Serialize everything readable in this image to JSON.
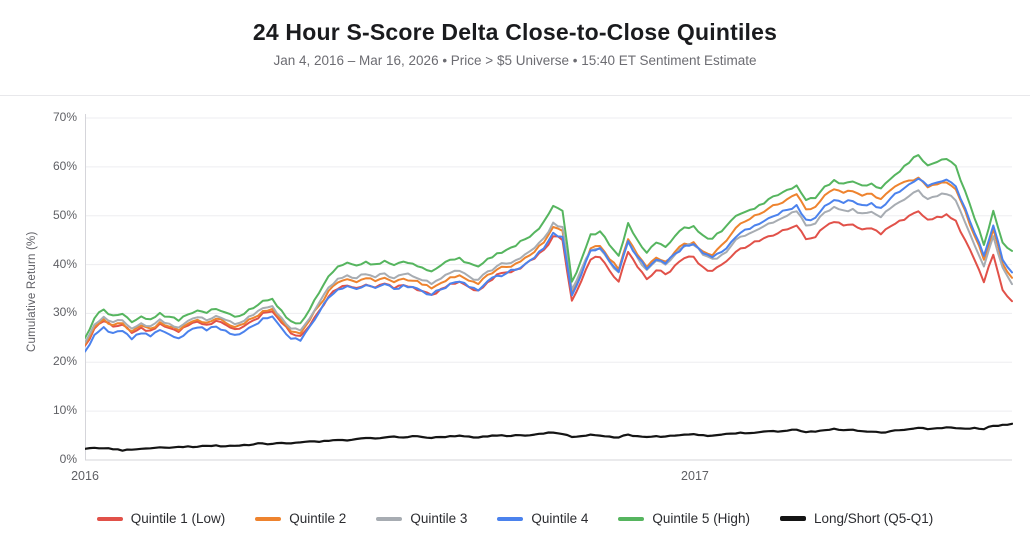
{
  "header": {
    "title": "24 Hour S-Score Delta Close-to-Close Quintiles",
    "subtitle": "Jan 4, 2016 – Mar 16, 2026  •  Price > $5 Universe  •  15:40 ET Sentiment Estimate"
  },
  "chart_data": {
    "type": "line",
    "title": "24 Hour S-Score Delta Close-to-Close Quintiles",
    "subtitle": "Jan 4, 2016 – Mar 16, 2026  •  Price > $5 Universe  •  15:40 ET Sentiment Estimate",
    "ylabel": "Cumulative Return (%)",
    "ylim": [
      0,
      70
    ],
    "y_ticks": [
      0,
      10,
      20,
      30,
      40,
      50,
      60,
      70
    ],
    "y_tick_suffix": "%",
    "x_ticks": [
      {
        "label": "2016",
        "frac": 0.0
      },
      {
        "label": "2017",
        "frac": 0.658
      }
    ],
    "grid": "horizontal",
    "legend_position": "bottom",
    "colors": {
      "quintile_1": "#e15149",
      "quintile_2": "#ee832e",
      "quintile_3": "#a7acb2",
      "quintile_4": "#4b82ed",
      "quintile_5": "#56b55f",
      "long_short": "#141414",
      "gridline": "#ededf0",
      "axis_line": "#d5d5da"
    },
    "series": [
      {
        "name": "Quintile 1 (Low)",
        "color": "#e15149",
        "values": [
          23.4,
          26.9,
          28.4,
          27.3,
          27.7,
          26.0,
          27.1,
          26.5,
          27.9,
          27.0,
          26.2,
          27.5,
          28.3,
          27.7,
          28.5,
          27.7,
          26.8,
          27.4,
          28.6,
          30.1,
          30.4,
          28.1,
          25.9,
          25.4,
          27.5,
          30.5,
          33.4,
          35.0,
          35.7,
          35.2,
          35.9,
          35.3,
          36.1,
          35.1,
          35.8,
          35.4,
          34.6,
          33.8,
          35.0,
          36.1,
          36.5,
          35.4,
          34.7,
          36.4,
          38.0,
          38.4,
          39.0,
          40.1,
          41.2,
          43.0,
          45.8,
          45.0,
          32.6,
          36.6,
          41.0,
          41.5,
          38.8,
          36.5,
          42.6,
          39.5,
          37.0,
          38.8,
          38.0,
          39.8,
          41.3,
          41.6,
          39.5,
          38.7,
          40.0,
          41.6,
          43.3,
          44.0,
          44.8,
          45.8,
          46.4,
          47.2,
          48.0,
          45.2,
          45.6,
          47.7,
          48.7,
          48.0,
          48.2,
          47.2,
          47.4,
          46.2,
          47.8,
          49.0,
          50.0,
          50.9,
          49.2,
          49.8,
          50.3,
          49.0,
          45.0,
          41.0,
          36.4,
          42.0,
          34.8,
          32.5
        ]
      },
      {
        "name": "Quintile 2",
        "color": "#ee832e",
        "values": [
          23.6,
          27.2,
          28.8,
          27.6,
          28.0,
          26.3,
          27.5,
          26.9,
          28.2,
          27.3,
          26.5,
          27.9,
          28.7,
          28.1,
          28.9,
          28.1,
          27.2,
          27.9,
          29.1,
          30.5,
          30.9,
          28.5,
          26.3,
          25.9,
          28.6,
          31.6,
          34.6,
          36.3,
          37.0,
          36.4,
          37.2,
          36.6,
          37.3,
          36.4,
          37.1,
          36.7,
          35.9,
          35.1,
          36.2,
          37.4,
          37.8,
          36.7,
          36.0,
          37.9,
          39.0,
          39.5,
          40.2,
          41.4,
          42.6,
          44.5,
          47.7,
          46.9,
          34.1,
          38.3,
          43.3,
          43.8,
          41.1,
          39.0,
          45.2,
          42.0,
          39.5,
          41.4,
          40.6,
          42.6,
          44.3,
          44.6,
          42.7,
          41.9,
          44.0,
          46.2,
          48.4,
          49.3,
          50.3,
          51.5,
          52.3,
          53.4,
          54.4,
          51.3,
          51.8,
          54.2,
          55.4,
          54.7,
          55.0,
          54.1,
          54.5,
          53.4,
          55.2,
          56.5,
          57.2,
          57.8,
          55.8,
          56.4,
          56.8,
          55.4,
          51.0,
          45.9,
          41.0,
          47.2,
          40.2,
          37.3
        ]
      },
      {
        "name": "Quintile 3",
        "color": "#a7acb2",
        "values": [
          24.0,
          27.7,
          29.3,
          28.2,
          28.6,
          26.9,
          28.0,
          27.4,
          28.8,
          27.9,
          27.1,
          28.5,
          29.2,
          28.6,
          29.5,
          28.7,
          27.8,
          28.5,
          29.7,
          31.1,
          31.5,
          29.1,
          26.9,
          26.5,
          29.0,
          32.2,
          35.3,
          37.1,
          37.8,
          37.2,
          38.0,
          37.4,
          38.2,
          37.2,
          38.0,
          37.6,
          36.8,
          36.0,
          37.1,
          38.3,
          38.7,
          37.6,
          36.9,
          38.6,
          39.7,
          40.2,
          40.9,
          42.1,
          43.4,
          45.4,
          48.6,
          47.7,
          34.9,
          39.0,
          42.8,
          43.2,
          40.6,
          38.4,
          44.6,
          41.4,
          38.9,
          40.8,
          40.0,
          42.0,
          43.7,
          44.0,
          42.0,
          41.2,
          42.0,
          43.8,
          45.7,
          46.4,
          47.3,
          48.4,
          49.1,
          50.0,
          50.9,
          48.0,
          48.4,
          50.7,
          51.8,
          51.1,
          51.4,
          50.5,
          50.8,
          49.7,
          51.5,
          52.8,
          54.0,
          55.2,
          53.4,
          54.0,
          54.4,
          53.1,
          48.6,
          44.0,
          39.6,
          45.8,
          39.4,
          36.0
        ]
      },
      {
        "name": "Quintile 4",
        "color": "#4b82ed",
        "values": [
          22.2,
          25.6,
          27.2,
          26.0,
          26.4,
          24.7,
          25.9,
          25.3,
          26.6,
          25.7,
          24.9,
          26.3,
          27.1,
          26.5,
          27.3,
          26.5,
          25.6,
          26.3,
          27.5,
          29.0,
          29.4,
          27.0,
          24.8,
          24.4,
          27.3,
          30.2,
          33.2,
          34.9,
          35.6,
          35.0,
          35.8,
          35.2,
          36.0,
          35.0,
          35.8,
          35.4,
          34.6,
          33.8,
          34.9,
          36.1,
          36.5,
          35.4,
          34.7,
          36.6,
          37.7,
          38.2,
          38.9,
          40.1,
          41.4,
          43.3,
          46.5,
          45.7,
          33.7,
          37.9,
          42.9,
          43.4,
          40.7,
          38.5,
          44.8,
          41.6,
          39.1,
          41.0,
          40.2,
          42.2,
          43.9,
          44.2,
          42.3,
          41.5,
          42.6,
          44.6,
          46.5,
          47.3,
          48.3,
          49.5,
          50.2,
          51.2,
          52.2,
          49.2,
          49.6,
          52.0,
          53.2,
          52.6,
          53.0,
          52.2,
          52.6,
          51.6,
          53.5,
          54.9,
          56.4,
          57.6,
          56.1,
          56.8,
          57.4,
          56.0,
          51.5,
          46.5,
          41.8,
          48.0,
          41.0,
          38.4
        ]
      },
      {
        "name": "Quintile 5 (High)",
        "color": "#56b55f",
        "values": [
          25.0,
          29.0,
          30.8,
          29.6,
          29.9,
          28.2,
          29.4,
          28.8,
          30.1,
          29.3,
          28.5,
          29.8,
          30.6,
          30.1,
          30.9,
          30.2,
          29.3,
          29.9,
          31.1,
          32.6,
          33.0,
          30.6,
          28.4,
          28.0,
          30.8,
          34.2,
          37.6,
          39.6,
          40.4,
          39.8,
          40.6,
          40.1,
          40.8,
          39.9,
          40.6,
          40.2,
          39.4,
          38.6,
          39.8,
          41.0,
          41.4,
          40.3,
          39.6,
          41.2,
          42.3,
          43.0,
          43.8,
          45.2,
          46.6,
          48.8,
          52.0,
          51.0,
          36.5,
          41.0,
          46.2,
          46.8,
          44.0,
          41.8,
          48.5,
          45.0,
          42.4,
          44.5,
          43.6,
          45.8,
          47.6,
          47.9,
          46.0,
          45.3,
          46.8,
          49.0,
          50.4,
          51.2,
          52.2,
          53.4,
          54.2,
          55.3,
          56.2,
          53.2,
          53.6,
          56.0,
          57.3,
          56.6,
          57.0,
          56.2,
          56.6,
          55.6,
          57.5,
          59.0,
          60.8,
          62.4,
          60.3,
          61.0,
          61.6,
          60.2,
          55.0,
          49.5,
          44.0,
          51.0,
          44.5,
          42.8
        ]
      },
      {
        "name": "Long/Short (Q5-Q1)",
        "color": "#141414",
        "values": [
          2.3,
          2.5,
          2.4,
          2.2,
          1.9,
          2.1,
          2.3,
          2.4,
          2.6,
          2.5,
          2.7,
          2.8,
          2.7,
          2.9,
          3.0,
          2.8,
          2.9,
          3.1,
          3.2,
          3.4,
          3.3,
          3.5,
          3.4,
          3.6,
          3.8,
          3.7,
          3.9,
          4.1,
          4.0,
          4.3,
          4.5,
          4.4,
          4.6,
          4.8,
          4.6,
          4.9,
          4.7,
          4.5,
          4.7,
          4.9,
          5.0,
          4.8,
          4.6,
          4.8,
          5.0,
          4.9,
          5.1,
          5.0,
          5.2,
          5.4,
          5.6,
          5.3,
          4.7,
          4.9,
          5.2,
          5.0,
          4.8,
          4.6,
          5.2,
          4.9,
          4.7,
          4.9,
          4.8,
          5.0,
          5.2,
          5.3,
          5.1,
          5.0,
          5.2,
          5.4,
          5.6,
          5.5,
          5.7,
          5.9,
          5.8,
          6.0,
          6.2,
          5.7,
          5.8,
          6.1,
          6.4,
          6.1,
          6.2,
          5.9,
          5.8,
          5.6,
          5.9,
          6.1,
          6.3,
          6.6,
          6.3,
          6.5,
          6.7,
          6.5,
          6.4,
          6.6,
          6.3,
          7.0,
          7.2,
          7.4
        ]
      }
    ]
  }
}
